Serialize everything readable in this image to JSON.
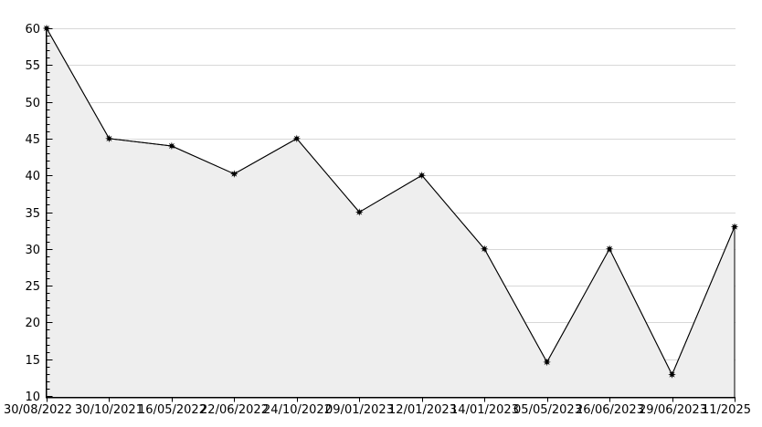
{
  "chart_data": {
    "type": "line",
    "area_fill": true,
    "title": "",
    "xlabel": "",
    "ylabel": "",
    "x": [
      "30/08/2022",
      "30/10/2021",
      "16/05/2022",
      "22/06/2022",
      "24/10/2022",
      "09/01/2023",
      "12/01/2023",
      "14/01/2023",
      "05/05/2023",
      "26/06/2023",
      "29/06/2023",
      "11/2025"
    ],
    "values": [
      60,
      45,
      44,
      40.2,
      45,
      35,
      40,
      30,
      14.6,
      30,
      12.9,
      33
    ],
    "ylim": [
      10,
      60
    ],
    "ytick_step": 5,
    "yminor_step": 1,
    "grid": true,
    "legend": "none",
    "marker": "star",
    "colors": {
      "line": "#000000",
      "marker": "#000000",
      "area_fill": "#eeeeee",
      "gridline": "#d8d8d8",
      "axis": "#000000",
      "text": "#000000",
      "background": "#ffffff"
    }
  }
}
